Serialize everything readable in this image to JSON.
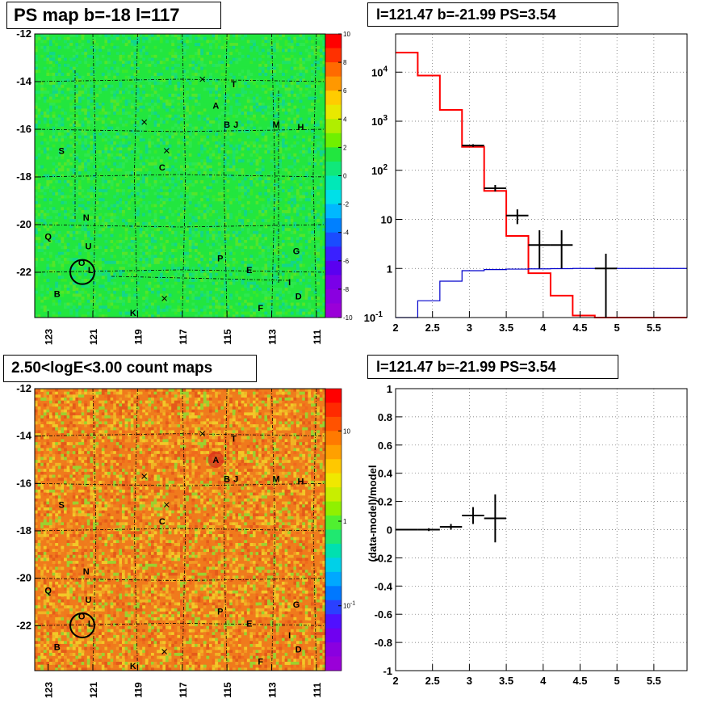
{
  "titles": {
    "map_top": "PS map b=-18 l=117",
    "spec_top": "l=121.47 b=-21.99 PS=3.54",
    "map_bottom": "2.50<logE<3.00 count maps",
    "spec_bottom": "l=121.47 b=-21.99 PS=3.54"
  },
  "colors": {
    "map_top_base": "#22e63f",
    "map_bottom_base": "#f07a1c",
    "model_line": "#ff0000",
    "background_line": "#0000cc",
    "data_points": "#000000"
  },
  "chart_data": [
    {
      "type": "heatmap",
      "id": "ps-map",
      "xlabel": "",
      "ylabel": "",
      "xlim": [
        123.6,
        110.6
      ],
      "ylim": [
        -23.9,
        -12
      ],
      "x_ticks": [
        "123",
        "121",
        "119",
        "117",
        "115",
        "113",
        "111"
      ],
      "y_ticks": [
        "-12",
        "-14",
        "-16",
        "-18",
        "-20",
        "-22"
      ],
      "colorbar": {
        "min": -10,
        "max": 10,
        "ticks": [
          "10",
          "8",
          "6",
          "4",
          "2",
          "0",
          "-2",
          "-4",
          "-6",
          "-8",
          "-10"
        ]
      },
      "sources": [
        {
          "label": "A",
          "l": 115.5,
          "b": -15.0
        },
        {
          "label": "T",
          "l": 114.7,
          "b": -14.1
        },
        {
          "label": "B",
          "l": 115.0,
          "b": -15.8
        },
        {
          "label": "J",
          "l": 114.6,
          "b": -15.8
        },
        {
          "label": "M",
          "l": 112.8,
          "b": -15.8
        },
        {
          "label": "H",
          "l": 111.7,
          "b": -15.9
        },
        {
          "label": "S",
          "l": 122.4,
          "b": -16.9
        },
        {
          "label": "C",
          "l": 117.9,
          "b": -17.6
        },
        {
          "label": "N",
          "l": 121.3,
          "b": -19.7
        },
        {
          "label": "Q",
          "l": 123.0,
          "b": -20.5
        },
        {
          "label": "U",
          "l": 121.2,
          "b": -20.9
        },
        {
          "label": "O",
          "l": 121.5,
          "b": -21.6
        },
        {
          "label": "L",
          "l": 121.1,
          "b": -21.9
        },
        {
          "label": "P",
          "l": 115.3,
          "b": -21.4
        },
        {
          "label": "E",
          "l": 114.0,
          "b": -21.9
        },
        {
          "label": "G",
          "l": 111.9,
          "b": -21.1
        },
        {
          "label": "I",
          "l": 112.2,
          "b": -22.4
        },
        {
          "label": "B",
          "l": 122.6,
          "b": -22.9
        },
        {
          "label": "D",
          "l": 111.8,
          "b": -23.0
        },
        {
          "label": "F",
          "l": 113.5,
          "b": -23.5
        },
        {
          "label": "K",
          "l": 119.2,
          "b": -23.7
        }
      ],
      "crosses": [
        {
          "l": 116.1,
          "b": -13.9
        },
        {
          "l": 118.7,
          "b": -15.7
        },
        {
          "l": 117.7,
          "b": -16.9
        },
        {
          "l": 117.8,
          "b": -23.1
        }
      ],
      "circle": {
        "l": 121.47,
        "b": -21.99
      }
    },
    {
      "type": "line",
      "id": "spectrum",
      "xlim": [
        2,
        5.95
      ],
      "ylim": [
        0.1,
        60000
      ],
      "yscale": "log",
      "x_ticks": [
        "2",
        "2.5",
        "3",
        "3.5",
        "4",
        "4.5",
        "5",
        "5.5"
      ],
      "y_ticks": [
        "10^-1",
        "1",
        "10",
        "10^2",
        "10^3",
        "10^4"
      ],
      "grid": true,
      "series": [
        {
          "kind": "step",
          "color": "red",
          "edges": [
            2.0,
            2.3,
            2.6,
            2.9,
            3.2,
            3.5,
            3.8,
            4.1,
            4.4,
            4.7,
            5.0,
            5.95
          ],
          "values": [
            25000,
            8500,
            1700,
            300,
            38,
            4.6,
            0.8,
            0.28,
            0.11,
            0.1,
            0.1
          ]
        },
        {
          "kind": "step",
          "color": "blue",
          "edges": [
            2.0,
            2.3,
            2.6,
            2.9,
            3.2,
            3.5,
            3.8,
            4.1,
            4.4,
            4.7,
            5.0,
            5.95
          ],
          "values": [
            0.1,
            0.22,
            0.55,
            0.9,
            0.95,
            0.97,
            0.98,
            0.99,
            1.0,
            1.0,
            1.0
          ]
        },
        {
          "kind": "points",
          "color": "black",
          "points": [
            {
              "x": 3.05,
              "y": 320,
              "xerr": 0.15,
              "ylo": 300,
              "yhi": 340
            },
            {
              "x": 3.35,
              "y": 43,
              "xerr": 0.15,
              "ylo": 37,
              "yhi": 50
            },
            {
              "x": 3.65,
              "y": 12,
              "xerr": 0.15,
              "ylo": 8,
              "yhi": 16
            },
            {
              "x": 3.95,
              "y": 3,
              "xerr": 0.15,
              "ylo": 1,
              "yhi": 6
            },
            {
              "x": 4.25,
              "y": 3,
              "xerr": 0.15,
              "ylo": 1,
              "yhi": 6
            },
            {
              "x": 4.85,
              "y": 1,
              "xerr": 0.15,
              "ylo": 0.1,
              "yhi": 2
            }
          ]
        }
      ]
    },
    {
      "type": "heatmap",
      "id": "count-map",
      "xlim": [
        123.6,
        110.6
      ],
      "ylim": [
        -23.9,
        -12
      ],
      "x_ticks": [
        "123",
        "121",
        "119",
        "117",
        "115",
        "113",
        "111"
      ],
      "y_ticks": [
        "-12",
        "-14",
        "-16",
        "-18",
        "-20",
        "-22"
      ],
      "colorbar": {
        "scale": "log",
        "ticks": [
          "10",
          "1",
          "10^-1"
        ]
      }
    },
    {
      "type": "scatter",
      "id": "residuals",
      "ylabel": "(data-model)/model",
      "xlim": [
        2,
        5.95
      ],
      "ylim": [
        -1,
        1
      ],
      "x_ticks": [
        "2",
        "2.5",
        "3",
        "3.5",
        "4",
        "4.5",
        "5",
        "5.5"
      ],
      "y_ticks": [
        "1",
        "0.8",
        "0.6",
        "0.4",
        "0.2",
        "0",
        "-0.2",
        "-0.4",
        "-0.6",
        "-0.8",
        "-1"
      ],
      "grid": true,
      "points": [
        {
          "x": 2.15,
          "y": 0.0,
          "xerr": 0.15,
          "yerr": 0.005
        },
        {
          "x": 2.45,
          "y": 0.0,
          "xerr": 0.15,
          "yerr": 0.01
        },
        {
          "x": 2.75,
          "y": 0.02,
          "xerr": 0.15,
          "yerr": 0.02
        },
        {
          "x": 3.05,
          "y": 0.1,
          "xerr": 0.15,
          "yerr": 0.06
        },
        {
          "x": 3.35,
          "y": 0.08,
          "xerr": 0.15,
          "yerr": 0.17
        }
      ]
    }
  ]
}
